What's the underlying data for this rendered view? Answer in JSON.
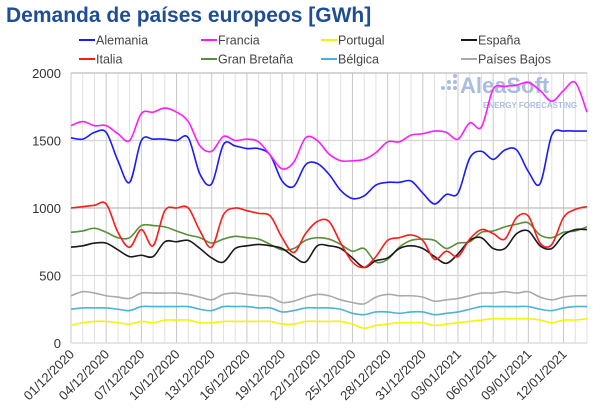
{
  "chart_data": {
    "type": "line",
    "title": "Demanda de países europeos [GWh]",
    "xlabel": "",
    "ylabel": "",
    "ylim": [
      0,
      2000
    ],
    "yticks": [
      0,
      500,
      1000,
      1500,
      2000
    ],
    "grid": true,
    "legend": "top",
    "watermark": {
      "brand": "AleaSoft",
      "tagline": "ENERGY FORECASTING"
    },
    "x_tick_labels": [
      "01/12/2020",
      "04/12/2020",
      "07/12/2020",
      "10/12/2020",
      "13/12/2020",
      "16/12/2020",
      "19/12/2020",
      "22/12/2020",
      "25/12/2020",
      "28/12/2020",
      "31/12/2020",
      "03/01/2021",
      "06/01/2021",
      "09/01/2021",
      "12/01/2021"
    ],
    "x_days": 45,
    "series": [
      {
        "name": "Alemania",
        "color": "#1a1aff",
        "values": [
          1520,
          1510,
          1560,
          1560,
          1350,
          1190,
          1500,
          1510,
          1510,
          1500,
          1520,
          1250,
          1180,
          1470,
          1460,
          1440,
          1440,
          1390,
          1200,
          1160,
          1320,
          1330,
          1250,
          1130,
          1070,
          1090,
          1170,
          1190,
          1190,
          1200,
          1110,
          1030,
          1100,
          1110,
          1370,
          1420,
          1360,
          1430,
          1430,
          1270,
          1180,
          1540,
          1570,
          1570,
          1570
        ]
      },
      {
        "name": "Francia",
        "color": "#ff1aff",
        "values": [
          1610,
          1640,
          1610,
          1610,
          1550,
          1500,
          1700,
          1710,
          1740,
          1710,
          1640,
          1460,
          1420,
          1530,
          1500,
          1510,
          1490,
          1390,
          1290,
          1340,
          1520,
          1500,
          1400,
          1350,
          1350,
          1360,
          1410,
          1490,
          1490,
          1540,
          1550,
          1570,
          1560,
          1510,
          1630,
          1600,
          1880,
          1900,
          1910,
          1930,
          1870,
          1790,
          1870,
          1930,
          1710
        ]
      },
      {
        "name": "Portugal",
        "color": "#f5f500",
        "values": [
          130,
          150,
          160,
          160,
          150,
          140,
          160,
          150,
          170,
          170,
          170,
          150,
          150,
          160,
          160,
          160,
          160,
          160,
          140,
          140,
          160,
          160,
          160,
          160,
          140,
          110,
          130,
          140,
          150,
          150,
          150,
          130,
          140,
          150,
          160,
          170,
          180,
          180,
          180,
          180,
          170,
          150,
          170,
          170,
          180
        ]
      },
      {
        "name": "España",
        "color": "#1a1a1a",
        "values": [
          710,
          720,
          740,
          740,
          690,
          640,
          650,
          640,
          750,
          750,
          760,
          700,
          630,
          600,
          700,
          720,
          730,
          720,
          700,
          640,
          600,
          720,
          720,
          700,
          630,
          560,
          610,
          630,
          700,
          720,
          700,
          640,
          590,
          660,
          760,
          780,
          700,
          700,
          810,
          830,
          720,
          700,
          800,
          840,
          840
        ]
      },
      {
        "name": "Italia",
        "color": "#ff1a1a",
        "values": [
          1000,
          1010,
          1020,
          1030,
          820,
          710,
          840,
          720,
          980,
          1000,
          1000,
          830,
          710,
          950,
          1000,
          980,
          960,
          940,
          780,
          670,
          810,
          900,
          900,
          740,
          600,
          560,
          640,
          760,
          780,
          800,
          760,
          620,
          680,
          640,
          770,
          840,
          810,
          770,
          930,
          940,
          740,
          730,
          930,
          990,
          1010
        ]
      },
      {
        "name": "Gran Bretaña",
        "color": "#5a8f3a",
        "values": [
          820,
          830,
          850,
          820,
          780,
          780,
          870,
          870,
          860,
          830,
          800,
          780,
          740,
          770,
          790,
          780,
          770,
          730,
          690,
          700,
          760,
          780,
          770,
          730,
          680,
          700,
          600,
          620,
          710,
          760,
          770,
          760,
          700,
          740,
          750,
          820,
          830,
          860,
          880,
          890,
          800,
          780,
          820,
          830,
          860
        ]
      },
      {
        "name": "Bélgica",
        "color": "#4db3d6",
        "values": [
          250,
          260,
          260,
          260,
          250,
          240,
          270,
          270,
          270,
          270,
          270,
          250,
          240,
          270,
          270,
          270,
          260,
          260,
          230,
          240,
          260,
          260,
          260,
          250,
          220,
          210,
          230,
          230,
          220,
          230,
          230,
          210,
          220,
          230,
          250,
          270,
          270,
          270,
          270,
          270,
          250,
          240,
          260,
          270,
          270
        ]
      },
      {
        "name": "Países Bajos",
        "color": "#aaaaaa",
        "values": [
          350,
          380,
          370,
          350,
          340,
          330,
          370,
          370,
          370,
          370,
          360,
          340,
          320,
          360,
          370,
          360,
          350,
          340,
          300,
          310,
          340,
          360,
          350,
          320,
          300,
          290,
          340,
          360,
          350,
          350,
          340,
          310,
          320,
          330,
          350,
          370,
          370,
          380,
          370,
          380,
          340,
          320,
          340,
          350,
          350
        ]
      }
    ]
  }
}
